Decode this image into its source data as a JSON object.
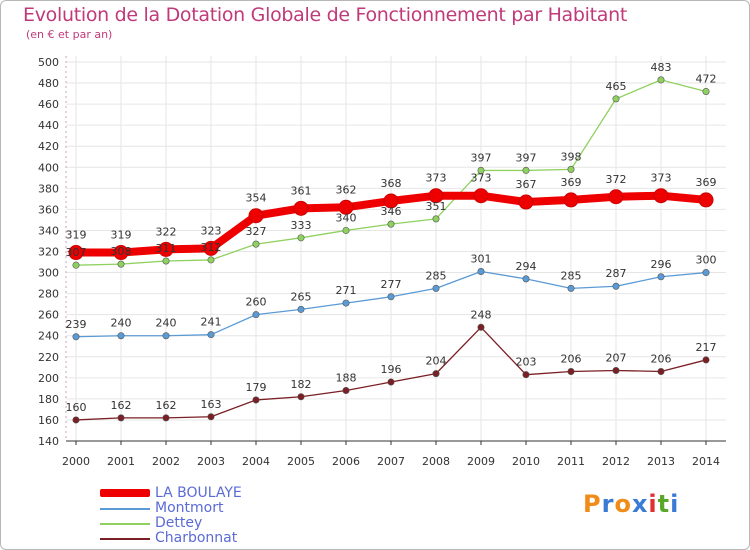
{
  "chart_data": {
    "type": "line",
    "title": "Evolution de la Dotation Globale de Fonctionnement par Habitant",
    "subtitle": "(en € et par an)",
    "xlabel": "",
    "ylabel": "",
    "x": [
      "2000",
      "2001",
      "2002",
      "2003",
      "2004",
      "2005",
      "2006",
      "2007",
      "2008",
      "2009",
      "2010",
      "2011",
      "2012",
      "2013",
      "2014"
    ],
    "ylim": [
      140,
      500
    ],
    "yticks": [
      140,
      160,
      180,
      200,
      220,
      240,
      260,
      280,
      300,
      320,
      340,
      360,
      380,
      400,
      420,
      440,
      460,
      480,
      500
    ],
    "grid": true,
    "legend_position": "bottom-left",
    "series": [
      {
        "name": "LA BOULAYE",
        "color": "#ee0000",
        "values": [
          319,
          319,
          322,
          323,
          354,
          361,
          362,
          368,
          373,
          373,
          367,
          369,
          372,
          373,
          369
        ]
      },
      {
        "name": "Montmort",
        "color": "#5b9bd5",
        "values": [
          239,
          240,
          240,
          241,
          260,
          265,
          271,
          277,
          285,
          301,
          294,
          285,
          287,
          296,
          300
        ]
      },
      {
        "name": "Dettey",
        "color": "#8fd160",
        "values": [
          307,
          308,
          311,
          312,
          327,
          333,
          340,
          346,
          351,
          397,
          397,
          398,
          465,
          483,
          472
        ]
      },
      {
        "name": "Charbonnat",
        "color": "#7a1f25",
        "values": [
          160,
          162,
          162,
          163,
          179,
          182,
          188,
          196,
          204,
          248,
          203,
          206,
          207,
          206,
          217
        ]
      }
    ]
  },
  "logo": {
    "text": "Proxiti",
    "letters": [
      "P",
      "r",
      "o",
      "x",
      "i",
      "t",
      "i"
    ],
    "colors": [
      "#f08c1a",
      "#3a7bd5",
      "#f08c1a",
      "#3a7bd5",
      "#e03030",
      "#5aa829",
      "#3a7bd5"
    ]
  }
}
